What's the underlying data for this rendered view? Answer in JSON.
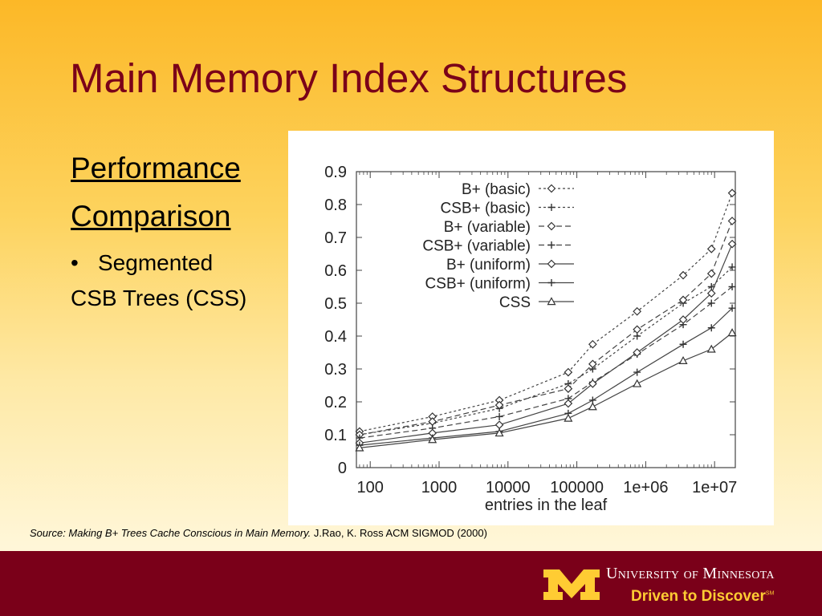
{
  "slide": {
    "title": "Main Memory Index Structures",
    "heading_line1": "Performance",
    "heading_line2": "Comparison",
    "bullet_marker": "•",
    "bullet": "Segmented",
    "bullet_cont": "CSB Trees (CSS)",
    "source_italic": "Source: Making B+ Trees Cache Conscious in Main Memory.",
    "source_rest": " J.Rao, K. Ross ACM SIGMOD (2000)"
  },
  "footer": {
    "university": "University of Minnesota",
    "tagline": "Driven to Discover",
    "tagline_mark": "SM",
    "colors": {
      "maroon": "#7a0019",
      "gold": "#ffcc33"
    }
  },
  "chart_data": {
    "type": "line",
    "xlabel": "entries in the leaf",
    "ylabel": "",
    "xscale": "log",
    "x_ticks": [
      {
        "value": 100,
        "label": "100"
      },
      {
        "value": 1000,
        "label": "1000"
      },
      {
        "value": 10000,
        "label": "10000"
      },
      {
        "value": 100000,
        "label": "100000"
      },
      {
        "value": 1000000,
        "label": "1e+06"
      },
      {
        "value": 10000000,
        "label": "1e+07"
      }
    ],
    "xlim": [
      63,
      20000000
    ],
    "ylim": [
      0,
      0.9
    ],
    "y_ticks": [
      {
        "value": 0,
        "label": "0"
      },
      {
        "value": 0.1,
        "label": "0.1"
      },
      {
        "value": 0.2,
        "label": "0.2"
      },
      {
        "value": 0.3,
        "label": "0.3"
      },
      {
        "value": 0.4,
        "label": "0.4"
      },
      {
        "value": 0.5,
        "label": "0.5"
      },
      {
        "value": 0.6,
        "label": "0.6"
      },
      {
        "value": 0.7,
        "label": "0.7"
      },
      {
        "value": 0.8,
        "label": "0.8"
      },
      {
        "value": 0.9,
        "label": "0.9"
      }
    ],
    "legend_position": "top-right",
    "grid": false,
    "x": [
      70,
      800,
      7500,
      75000,
      170000,
      750000,
      3500000,
      9000000,
      18000000
    ],
    "series": [
      {
        "name": "B+ (basic)",
        "marker": "diamond",
        "dash": "3,3",
        "values": [
          0.11,
          0.155,
          0.205,
          0.29,
          0.375,
          0.475,
          0.585,
          0.665,
          0.835
        ]
      },
      {
        "name": "CSB+ (basic)",
        "marker": "plus",
        "dash": "3,3",
        "values": [
          0.1,
          0.135,
          0.18,
          0.255,
          0.3,
          0.4,
          0.5,
          0.55,
          0.61
        ]
      },
      {
        "name": "B+ (variable)",
        "marker": "diamond",
        "dash": "7,4",
        "values": [
          0.1,
          0.14,
          0.19,
          0.24,
          0.315,
          0.42,
          0.51,
          0.59,
          0.75
        ]
      },
      {
        "name": "CSB+ (variable)",
        "marker": "plus",
        "dash": "7,4",
        "values": [
          0.09,
          0.12,
          0.155,
          0.21,
          0.26,
          0.345,
          0.435,
          0.5,
          0.55
        ]
      },
      {
        "name": "B+ (uniform)",
        "marker": "diamond",
        "dash": "",
        "values": [
          0.075,
          0.105,
          0.13,
          0.195,
          0.255,
          0.35,
          0.45,
          0.53,
          0.68
        ]
      },
      {
        "name": "CSB+ (uniform)",
        "marker": "plus",
        "dash": "",
        "values": [
          0.068,
          0.09,
          0.11,
          0.165,
          0.205,
          0.29,
          0.375,
          0.425,
          0.485
        ]
      },
      {
        "name": "CSS",
        "marker": "triangle",
        "dash": "",
        "values": [
          0.06,
          0.085,
          0.105,
          0.15,
          0.185,
          0.255,
          0.325,
          0.36,
          0.41
        ]
      }
    ]
  }
}
